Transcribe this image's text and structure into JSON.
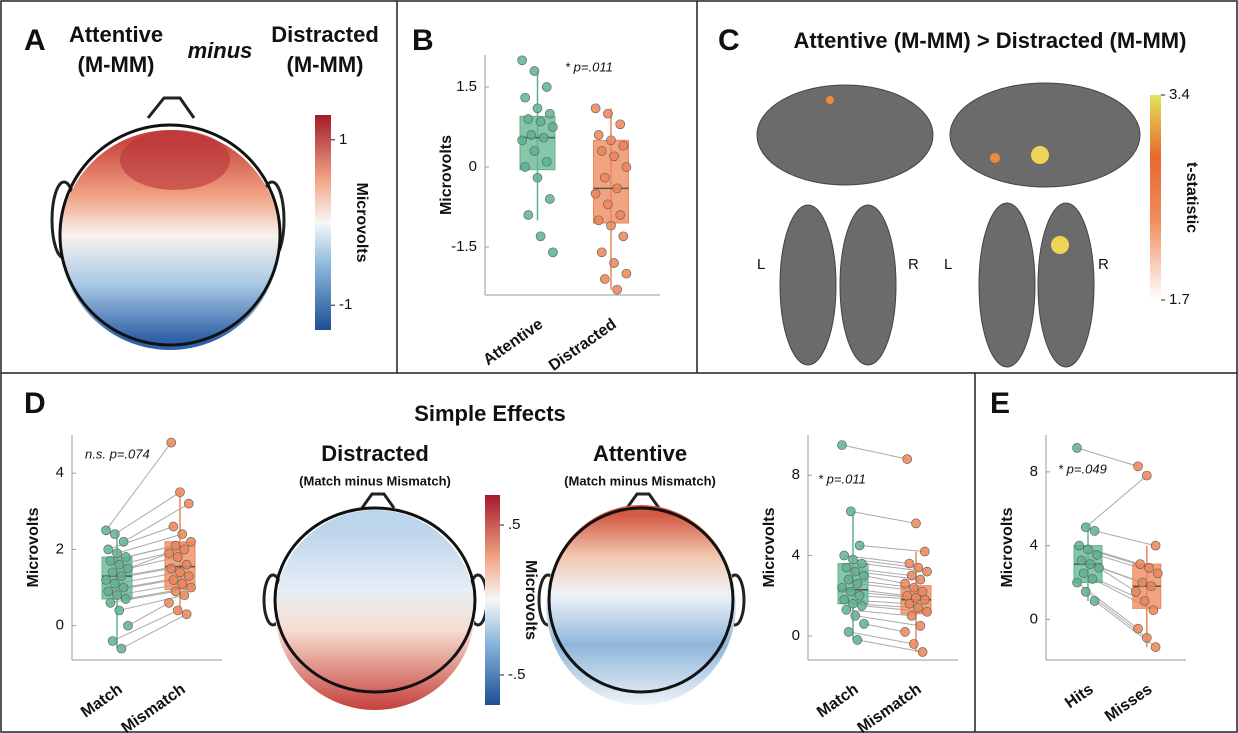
{
  "figure": {
    "A": {
      "label": "A",
      "title_left": "Attentive",
      "title_left2": "(M-MM)",
      "title_mid": "minus",
      "title_right": "Distracted",
      "title_right2": "(M-MM)",
      "colorbar": {
        "label": "Microvolts",
        "lim": [
          -1.3,
          1.3
        ],
        "ticks": [
          1,
          -1
        ]
      }
    },
    "C": {
      "label": "C",
      "title": "Attentive (M-MM) > Distracted (M-MM)",
      "left": "L",
      "right": "R",
      "left2": "L",
      "right2": "R",
      "colorbar": {
        "label": "t-statistic",
        "lim": [
          1.7,
          3.4
        ],
        "ticks": [
          3.4,
          1.7
        ]
      }
    },
    "D": {
      "label": "D",
      "heading": "Simple Effects",
      "topo1_title": "Distracted",
      "topo1_subtitle": "(Match minus Mismatch)",
      "topo2_title": "Attentive",
      "topo2_subtitle": "(Match minus Mismatch)",
      "colorbar": {
        "label": "Microvolts",
        "lim": [
          -0.7,
          0.7
        ],
        "ticks": [
          {
            "value": 0.5,
            "label": ".5"
          },
          {
            "value": -0.5,
            "label": "-.5"
          }
        ]
      }
    },
    "B": {
      "label": "B"
    },
    "E": {
      "label": "E"
    }
  },
  "chart_data": [
    {
      "type": "box",
      "ylabel": "Microvolts",
      "annotation": "* p=.011",
      "categories": [
        "Attentive",
        "Distracted"
      ],
      "colors": [
        "#5db38e",
        "#ee8557"
      ],
      "ylim": [
        -2.4,
        2.1
      ],
      "yticks": [
        1.5,
        0,
        -1.5
      ],
      "paired": false,
      "boxes": [
        {
          "low": -1.0,
          "q1": -0.05,
          "median": 0.55,
          "q3": 0.95,
          "high": 1.8
        },
        {
          "low": -2.3,
          "q1": -1.05,
          "median": -0.4,
          "q3": 0.5,
          "high": 1.1
        }
      ],
      "points": [
        [
          2.0,
          1.8,
          1.5,
          1.3,
          1.1,
          1.0,
          0.9,
          0.85,
          0.75,
          0.6,
          0.55,
          0.5,
          0.3,
          0.1,
          0.0,
          -0.2,
          -0.6,
          -0.9,
          -1.3,
          -1.6
        ],
        [
          1.1,
          1.0,
          0.8,
          0.6,
          0.5,
          0.4,
          0.3,
          0.2,
          0.0,
          -0.2,
          -0.4,
          -0.5,
          -0.7,
          -0.9,
          -1.0,
          -1.1,
          -1.3,
          -1.6,
          -1.8,
          -2.0,
          -2.1,
          -2.3
        ]
      ]
    },
    {
      "type": "box",
      "ylabel": "Microvolts",
      "annotation": "n.s. p=.074",
      "categories": [
        "Match",
        "Mismatch"
      ],
      "colors": [
        "#5db38e",
        "#ee8557"
      ],
      "ylim": [
        -0.9,
        5.0
      ],
      "yticks": [
        0,
        2,
        4
      ],
      "paired": true,
      "boxes": [
        {
          "low": -0.6,
          "q1": 0.7,
          "median": 1.3,
          "q3": 1.8,
          "high": 2.5
        },
        {
          "low": 0.3,
          "q1": 0.95,
          "median": 1.55,
          "q3": 2.2,
          "high": 3.5
        }
      ],
      "points": [
        [
          2.5,
          2.4,
          2.2,
          2.0,
          1.9,
          1.8,
          1.7,
          1.6,
          1.5,
          1.4,
          1.3,
          1.2,
          1.1,
          1.0,
          0.9,
          0.8,
          0.7,
          0.6,
          0.4,
          0.0,
          -0.4,
          -0.6
        ],
        [
          4.8,
          3.5,
          3.2,
          2.6,
          2.4,
          2.2,
          2.1,
          2.0,
          1.9,
          1.8,
          1.6,
          1.5,
          1.4,
          1.3,
          1.2,
          1.1,
          1.0,
          0.9,
          0.8,
          0.6,
          0.4,
          0.3
        ]
      ]
    },
    {
      "type": "box",
      "ylabel": "Microvolts",
      "annotation": "* p=.011",
      "categories": [
        "Match",
        "Mismatch"
      ],
      "colors": [
        "#5db38e",
        "#ee8557"
      ],
      "ylim": [
        -1.2,
        10
      ],
      "yticks": [
        0,
        4,
        8
      ],
      "paired": true,
      "boxes": [
        {
          "low": -0.2,
          "q1": 1.6,
          "median": 2.3,
          "q3": 3.6,
          "high": 6.2
        },
        {
          "low": -0.8,
          "q1": 1.1,
          "median": 1.8,
          "q3": 2.5,
          "high": 4.2
        }
      ],
      "points": [
        [
          9.5,
          6.2,
          4.5,
          4.0,
          3.8,
          3.6,
          3.4,
          3.2,
          3.0,
          2.8,
          2.6,
          2.4,
          2.2,
          2.0,
          1.8,
          1.6,
          1.5,
          1.3,
          1.0,
          0.6,
          0.2,
          -0.2
        ],
        [
          8.8,
          5.6,
          4.2,
          3.6,
          3.4,
          3.2,
          3.0,
          2.8,
          2.6,
          2.4,
          2.2,
          2.0,
          1.9,
          1.8,
          1.6,
          1.4,
          1.2,
          1.0,
          0.5,
          0.2,
          -0.4,
          -0.8
        ]
      ]
    },
    {
      "type": "box",
      "ylabel": "Microvolts",
      "annotation": "* p=.049",
      "categories": [
        "Hits",
        "Misses"
      ],
      "colors": [
        "#5db38e",
        "#ee8557"
      ],
      "ylim": [
        -2.2,
        10
      ],
      "yticks": [
        0,
        4,
        8
      ],
      "paired": true,
      "boxes": [
        {
          "low": 1.0,
          "q1": 2.0,
          "median": 3.0,
          "q3": 4.0,
          "high": 5.0
        },
        {
          "low": -1.5,
          "q1": 0.6,
          "median": 1.8,
          "q3": 3.0,
          "high": 4.0
        }
      ],
      "points": [
        [
          9.3,
          5.0,
          4.8,
          4.0,
          3.8,
          3.5,
          3.2,
          3.0,
          2.8,
          2.5,
          2.2,
          2.0,
          1.5,
          1.0
        ],
        [
          8.3,
          7.8,
          4.0,
          3.0,
          2.8,
          2.5,
          2.0,
          1.8,
          1.5,
          1.0,
          0.5,
          -0.5,
          -1.0,
          -1.5
        ]
      ]
    }
  ]
}
